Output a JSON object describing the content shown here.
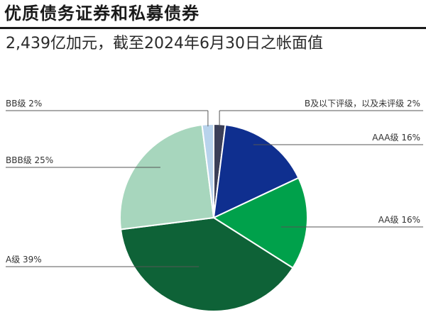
{
  "title": "优质债务证券和私募债券",
  "subtitle": "2,439亿加元，截至2024年6月30日之帐面值",
  "chart_data": {
    "type": "pie",
    "start": "top",
    "direction": "clockwise",
    "slices": [
      {
        "name": "B及以下评级，以及未评级",
        "value": 2,
        "label": "B及以下评级，以及未评级 2%",
        "color": "#3b3f58"
      },
      {
        "name": "AAA级",
        "value": 16,
        "label": "AAA级 16%",
        "color": "#0f2f8f"
      },
      {
        "name": "AA级",
        "value": 16,
        "label": "AA级 16%",
        "color": "#00a14b"
      },
      {
        "name": "A级",
        "value": 39,
        "label": "A级 39%",
        "color": "#0e6237"
      },
      {
        "name": "BBB级",
        "value": 25,
        "label": "BBB级 25%",
        "color": "#a7d6bd"
      },
      {
        "name": "BB级",
        "value": 2,
        "label": "BB级 2%",
        "color": "#b8d3ec"
      }
    ]
  }
}
